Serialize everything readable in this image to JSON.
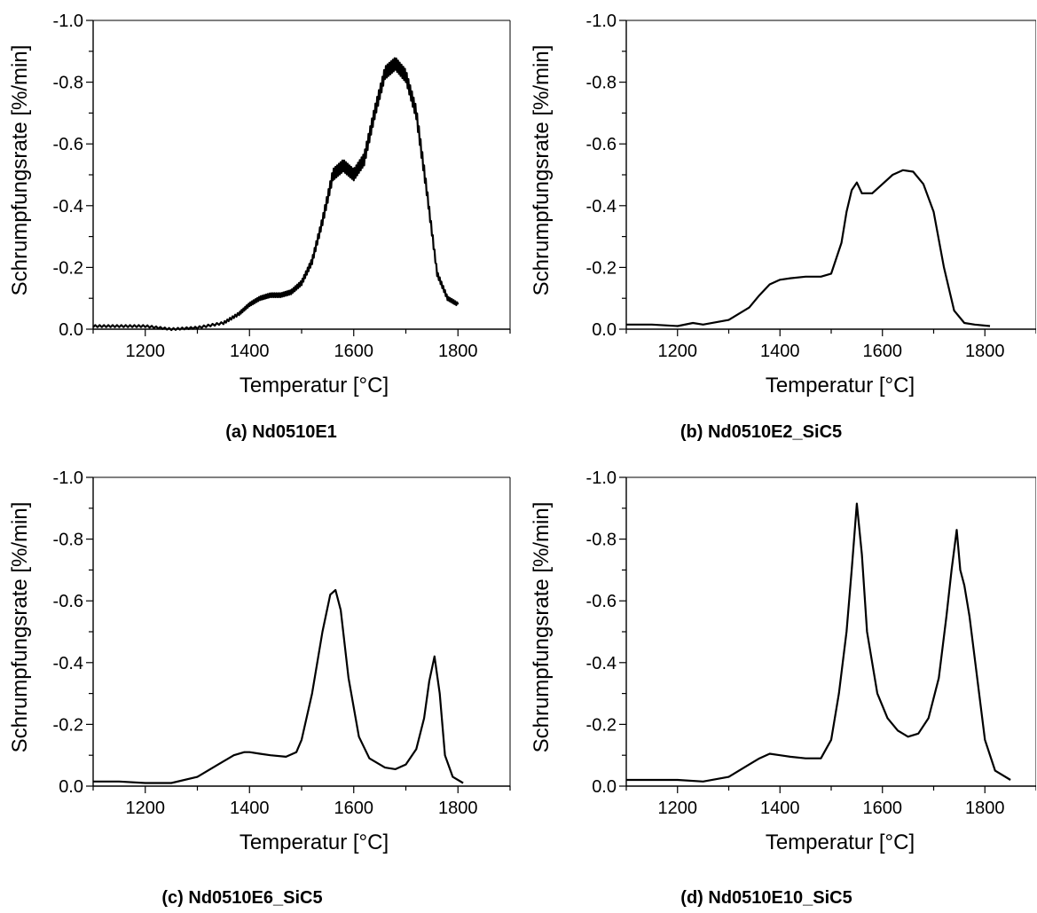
{
  "chart_data": [
    {
      "type": "line",
      "caption": "(a)  Nd0510E1",
      "xlabel": "Temperatur [°C]",
      "ylabel": "Schrumpfungsrate [%/min]",
      "xlim": [
        1100,
        1900
      ],
      "ylim": [
        0.0,
        -1.0
      ],
      "y_inverted": true,
      "xticks": [
        1200,
        1400,
        1600,
        1800
      ],
      "xtick_labels": [
        "1200",
        "1400",
        "1600",
        "1800"
      ],
      "yticks": [
        0.0,
        -0.2,
        -0.4,
        -0.6,
        -0.8,
        -1.0
      ],
      "ytick_labels": [
        "0.0",
        "-0.2",
        "-0.4",
        "-0.6",
        "-0.8",
        "-1.0"
      ],
      "noisy": true,
      "series": [
        {
          "x": [
            1100,
            1150,
            1200,
            1250,
            1300,
            1350,
            1380,
            1400,
            1420,
            1440,
            1460,
            1480,
            1500,
            1520,
            1540,
            1560,
            1580,
            1600,
            1620,
            1640,
            1660,
            1680,
            1700,
            1720,
            1740,
            1760,
            1780,
            1800
          ],
          "y": [
            -0.01,
            -0.01,
            -0.01,
            0.0,
            -0.005,
            -0.02,
            -0.05,
            -0.08,
            -0.1,
            -0.11,
            -0.11,
            -0.12,
            -0.15,
            -0.22,
            -0.35,
            -0.5,
            -0.53,
            -0.5,
            -0.55,
            -0.7,
            -0.83,
            -0.86,
            -0.82,
            -0.7,
            -0.45,
            -0.18,
            -0.1,
            -0.08
          ]
        }
      ]
    },
    {
      "type": "line",
      "caption": "(b)  Nd0510E2_SiC5",
      "xlabel": "Temperatur [°C]",
      "ylabel": "Schrumpfungsrate [%/min]",
      "xlim": [
        1100,
        1900
      ],
      "ylim": [
        0.0,
        -1.0
      ],
      "y_inverted": true,
      "xticks": [
        1200,
        1400,
        1600,
        1800
      ],
      "xtick_labels": [
        "1200",
        "1400",
        "1600",
        "1800"
      ],
      "yticks": [
        0.0,
        -0.2,
        -0.4,
        -0.6,
        -0.8,
        -1.0
      ],
      "ytick_labels": [
        "0.0",
        "-0.2",
        "-0.4",
        "-0.6",
        "-0.8",
        "-1.0"
      ],
      "noisy": false,
      "series": [
        {
          "x": [
            1100,
            1150,
            1200,
            1230,
            1250,
            1300,
            1340,
            1360,
            1380,
            1400,
            1420,
            1450,
            1480,
            1500,
            1520,
            1530,
            1540,
            1550,
            1560,
            1580,
            1600,
            1620,
            1640,
            1660,
            1680,
            1700,
            1720,
            1740,
            1760,
            1780,
            1810
          ],
          "y": [
            -0.015,
            -0.015,
            -0.01,
            -0.02,
            -0.015,
            -0.03,
            -0.07,
            -0.11,
            -0.145,
            -0.16,
            -0.165,
            -0.17,
            -0.17,
            -0.18,
            -0.28,
            -0.38,
            -0.45,
            -0.475,
            -0.44,
            -0.44,
            -0.47,
            -0.5,
            -0.515,
            -0.51,
            -0.47,
            -0.38,
            -0.2,
            -0.06,
            -0.02,
            -0.015,
            -0.01
          ]
        }
      ]
    },
    {
      "type": "line",
      "caption": "(c)  Nd0510E6_SiC5",
      "xlabel": "Temperatur [°C]",
      "ylabel": "Schrumpfungsrate [%/min]",
      "xlim": [
        1100,
        1900
      ],
      "ylim": [
        0.0,
        -1.0
      ],
      "y_inverted": true,
      "xticks": [
        1200,
        1400,
        1600,
        1800
      ],
      "xtick_labels": [
        "1200",
        "1400",
        "1600",
        "1800"
      ],
      "yticks": [
        0.0,
        -0.2,
        -0.4,
        -0.6,
        -0.8,
        -1.0
      ],
      "ytick_labels": [
        "0.0",
        "-0.2",
        "-0.4",
        "-0.6",
        "-0.8",
        "-1.0"
      ],
      "noisy": false,
      "series": [
        {
          "x": [
            1100,
            1150,
            1200,
            1250,
            1300,
            1340,
            1370,
            1390,
            1400,
            1420,
            1440,
            1470,
            1490,
            1500,
            1520,
            1540,
            1555,
            1565,
            1575,
            1590,
            1610,
            1630,
            1660,
            1680,
            1700,
            1720,
            1735,
            1745,
            1755,
            1765,
            1775,
            1790,
            1810
          ],
          "y": [
            -0.015,
            -0.015,
            -0.01,
            -0.01,
            -0.03,
            -0.07,
            -0.1,
            -0.11,
            -0.11,
            -0.105,
            -0.1,
            -0.095,
            -0.11,
            -0.15,
            -0.3,
            -0.5,
            -0.62,
            -0.635,
            -0.57,
            -0.35,
            -0.16,
            -0.09,
            -0.06,
            -0.055,
            -0.07,
            -0.12,
            -0.22,
            -0.34,
            -0.42,
            -0.3,
            -0.1,
            -0.03,
            -0.01
          ]
        }
      ]
    },
    {
      "type": "line",
      "caption": "(d)  Nd0510E10_SiC5",
      "xlabel": "Temperatur [°C]",
      "ylabel": "Schrumpfungsrate [%/min]",
      "xlim": [
        1100,
        1900
      ],
      "ylim": [
        0.0,
        -1.0
      ],
      "y_inverted": true,
      "xticks": [
        1200,
        1400,
        1600,
        1800
      ],
      "xtick_labels": [
        "1200",
        "1400",
        "1600",
        "1800"
      ],
      "yticks": [
        0.0,
        -0.2,
        -0.4,
        -0.6,
        -0.8,
        -1.0
      ],
      "ytick_labels": [
        "0.0",
        "-0.2",
        "-0.4",
        "-0.6",
        "-0.8",
        "-1.0"
      ],
      "noisy": false,
      "series": [
        {
          "x": [
            1100,
            1150,
            1200,
            1250,
            1300,
            1340,
            1360,
            1380,
            1400,
            1420,
            1450,
            1480,
            1500,
            1515,
            1530,
            1540,
            1550,
            1560,
            1570,
            1590,
            1610,
            1630,
            1650,
            1670,
            1690,
            1710,
            1725,
            1735,
            1745,
            1752,
            1760,
            1770,
            1785,
            1800,
            1820,
            1850
          ],
          "y": [
            -0.02,
            -0.02,
            -0.02,
            -0.015,
            -0.03,
            -0.07,
            -0.09,
            -0.105,
            -0.1,
            -0.095,
            -0.09,
            -0.09,
            -0.15,
            -0.3,
            -0.5,
            -0.7,
            -0.915,
            -0.75,
            -0.5,
            -0.3,
            -0.22,
            -0.18,
            -0.16,
            -0.17,
            -0.22,
            -0.35,
            -0.55,
            -0.7,
            -0.83,
            -0.7,
            -0.65,
            -0.55,
            -0.35,
            -0.15,
            -0.05,
            -0.02
          ]
        }
      ]
    }
  ]
}
